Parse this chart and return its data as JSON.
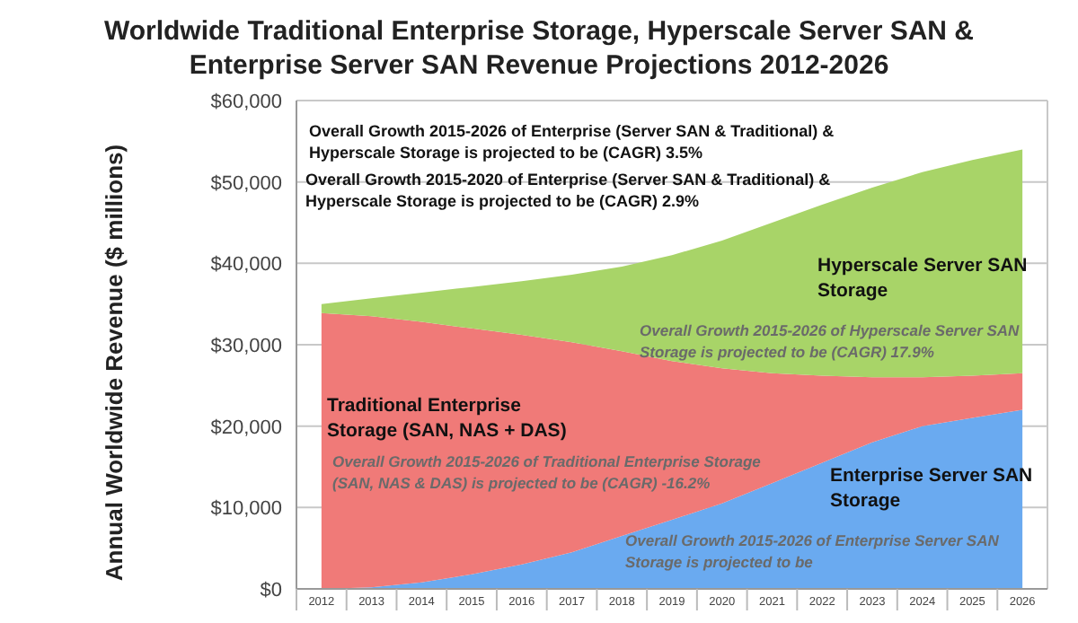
{
  "chart_data": {
    "type": "area",
    "stacked": true,
    "title": "Worldwide Traditional Enterprise Storage, Hyperscale Server SAN & Enterprise Server SAN Revenue Projections 2012-2026",
    "ylabel": "Annual Worldwide Revenue ($ millions)",
    "categories": [
      "2012",
      "2013",
      "2014",
      "2015",
      "2016",
      "2017",
      "2018",
      "2019",
      "2020",
      "2021",
      "2022",
      "2023",
      "2024",
      "2025",
      "2026"
    ],
    "series": [
      {
        "name": "Enterprise Server SAN Storage",
        "color": "#6aaaf0",
        "values": [
          0,
          200,
          800,
          1800,
          3000,
          4500,
          6500,
          8500,
          10500,
          13000,
          15500,
          18000,
          20000,
          21000,
          22000
        ]
      },
      {
        "name": "Traditional Enterprise Storage (SAN, NAS + DAS)",
        "color": "#f07a78",
        "values": [
          33900,
          33300,
          32000,
          30200,
          28200,
          25800,
          22700,
          19500,
          16600,
          13500,
          10700,
          8000,
          6000,
          5200,
          4500
        ]
      },
      {
        "name": "Hyperscale Server SAN Storage",
        "color": "#a8d468",
        "values": [
          1100,
          2200,
          3600,
          5100,
          6600,
          8300,
          10400,
          13000,
          15700,
          18500,
          21000,
          23300,
          25200,
          26500,
          27500
        ]
      }
    ],
    "ylim": [
      0,
      60000
    ],
    "yticks": [
      {
        "value": 0,
        "label": "$0"
      },
      {
        "value": 10000,
        "label": "$10,000"
      },
      {
        "value": 20000,
        "label": "$20,000"
      },
      {
        "value": 30000,
        "label": "$30,000"
      },
      {
        "value": 40000,
        "label": "$40,000"
      },
      {
        "value": 50000,
        "label": "$50,000"
      },
      {
        "value": 60000,
        "label": "$60,000"
      }
    ],
    "grid": "y",
    "annotations": [
      "Overall Growth 2015-2026 of Enterprise (Server SAN & Traditional) & Hyperscale Storage is projected to be (CAGR) 3.5%",
      "Overall Growth 2015-2020 of Enterprise (Server SAN & Traditional) & Hyperscale Storage is projected to be (CAGR) 2.9%",
      "Overall Growth 2015-2026 of Hyperscale Server SAN Storage is projected to be (CAGR) 17.9%",
      "Overall Growth 2015-2026 of Traditional Enterprise Storage (SAN, NAS & DAS) is projected to be (CAGR) -16.2%",
      "Overall Growth 2015-2026 of Enterprise Server SAN Storage is projected to be"
    ]
  }
}
